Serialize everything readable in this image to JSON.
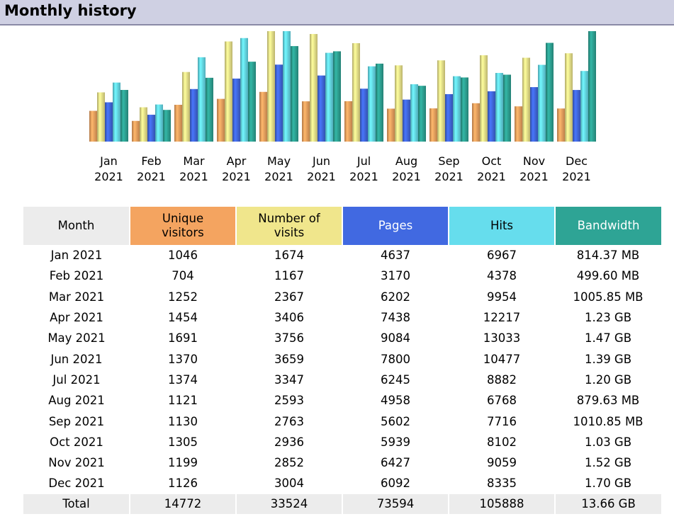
{
  "header": {
    "title": "Monthly history"
  },
  "colors": {
    "visitors": "#f4a460",
    "visits": "#f0e68c",
    "pages": "#4169e1",
    "hits": "#66dded",
    "bandwidth": "#2ea495",
    "month_header": "#ececec",
    "total_row": "#ececec"
  },
  "table": {
    "headers": {
      "month": "Month",
      "visitors_line1": "Unique",
      "visitors_line2": "visitors",
      "visits_line1": "Number of",
      "visits_line2": "visits",
      "pages": "Pages",
      "hits": "Hits",
      "bandwidth": "Bandwidth"
    },
    "rows": [
      {
        "month": "Jan 2021",
        "visitors": "1046",
        "visits": "1674",
        "pages": "4637",
        "hits": "6967",
        "bandwidth": "814.37 MB"
      },
      {
        "month": "Feb 2021",
        "visitors": "704",
        "visits": "1167",
        "pages": "3170",
        "hits": "4378",
        "bandwidth": "499.60 MB"
      },
      {
        "month": "Mar 2021",
        "visitors": "1252",
        "visits": "2367",
        "pages": "6202",
        "hits": "9954",
        "bandwidth": "1005.85 MB"
      },
      {
        "month": "Apr 2021",
        "visitors": "1454",
        "visits": "3406",
        "pages": "7438",
        "hits": "12217",
        "bandwidth": "1.23 GB"
      },
      {
        "month": "May 2021",
        "visitors": "1691",
        "visits": "3756",
        "pages": "9084",
        "hits": "13033",
        "bandwidth": "1.47 GB"
      },
      {
        "month": "Jun 2021",
        "visitors": "1370",
        "visits": "3659",
        "pages": "7800",
        "hits": "10477",
        "bandwidth": "1.39 GB"
      },
      {
        "month": "Jul 2021",
        "visitors": "1374",
        "visits": "3347",
        "pages": "6245",
        "hits": "8882",
        "bandwidth": "1.20 GB"
      },
      {
        "month": "Aug 2021",
        "visitors": "1121",
        "visits": "2593",
        "pages": "4958",
        "hits": "6768",
        "bandwidth": "879.63 MB"
      },
      {
        "month": "Sep 2021",
        "visitors": "1130",
        "visits": "2763",
        "pages": "5602",
        "hits": "7716",
        "bandwidth": "1010.85 MB"
      },
      {
        "month": "Oct 2021",
        "visitors": "1305",
        "visits": "2936",
        "pages": "5939",
        "hits": "8102",
        "bandwidth": "1.03 GB"
      },
      {
        "month": "Nov 2021",
        "visitors": "1199",
        "visits": "2852",
        "pages": "6427",
        "hits": "9059",
        "bandwidth": "1.52 GB"
      },
      {
        "month": "Dec 2021",
        "visitors": "1126",
        "visits": "3004",
        "pages": "6092",
        "hits": "8335",
        "bandwidth": "1.70 GB"
      }
    ],
    "total": {
      "label": "Total",
      "visitors": "14772",
      "visits": "33524",
      "pages": "73594",
      "hits": "105888",
      "bandwidth": "13.66 GB"
    }
  },
  "chart_data": {
    "type": "bar",
    "categories": [
      [
        "Jan",
        "2021"
      ],
      [
        "Feb",
        "2021"
      ],
      [
        "Mar",
        "2021"
      ],
      [
        "Apr",
        "2021"
      ],
      [
        "May",
        "2021"
      ],
      [
        "Jun",
        "2021"
      ],
      [
        "Jul",
        "2021"
      ],
      [
        "Aug",
        "2021"
      ],
      [
        "Sep",
        "2021"
      ],
      [
        "Oct",
        "2021"
      ],
      [
        "Nov",
        "2021"
      ],
      [
        "Dec",
        "2021"
      ]
    ],
    "grid": false,
    "legend": "none",
    "series": [
      {
        "key": "visitors",
        "color": "#f4a460",
        "values": [
          1046,
          704,
          1252,
          1454,
          1691,
          1370,
          1374,
          1121,
          1130,
          1305,
          1199,
          1126
        ]
      },
      {
        "key": "visits",
        "color": "#f0e68c",
        "values": [
          1674,
          1167,
          2367,
          3406,
          3756,
          3659,
          3347,
          2593,
          2763,
          2936,
          2852,
          3004
        ]
      },
      {
        "key": "pages",
        "color": "#4169e1",
        "values": [
          4637,
          3170,
          6202,
          7438,
          9084,
          7800,
          6245,
          4958,
          5602,
          5939,
          6427,
          6092
        ]
      },
      {
        "key": "hits",
        "color": "#66dded",
        "values": [
          6967,
          4378,
          9954,
          12217,
          13033,
          10477,
          8882,
          6768,
          7716,
          8102,
          9059,
          8335
        ]
      },
      {
        "key": "bandwidth",
        "color": "#2ea495",
        "unit": "MB",
        "values": [
          814.37,
          499.6,
          1005.85,
          1259.52,
          1505.28,
          1423.36,
          1228.8,
          879.63,
          1010.85,
          1054.72,
          1556.48,
          1740.8
        ]
      }
    ]
  }
}
